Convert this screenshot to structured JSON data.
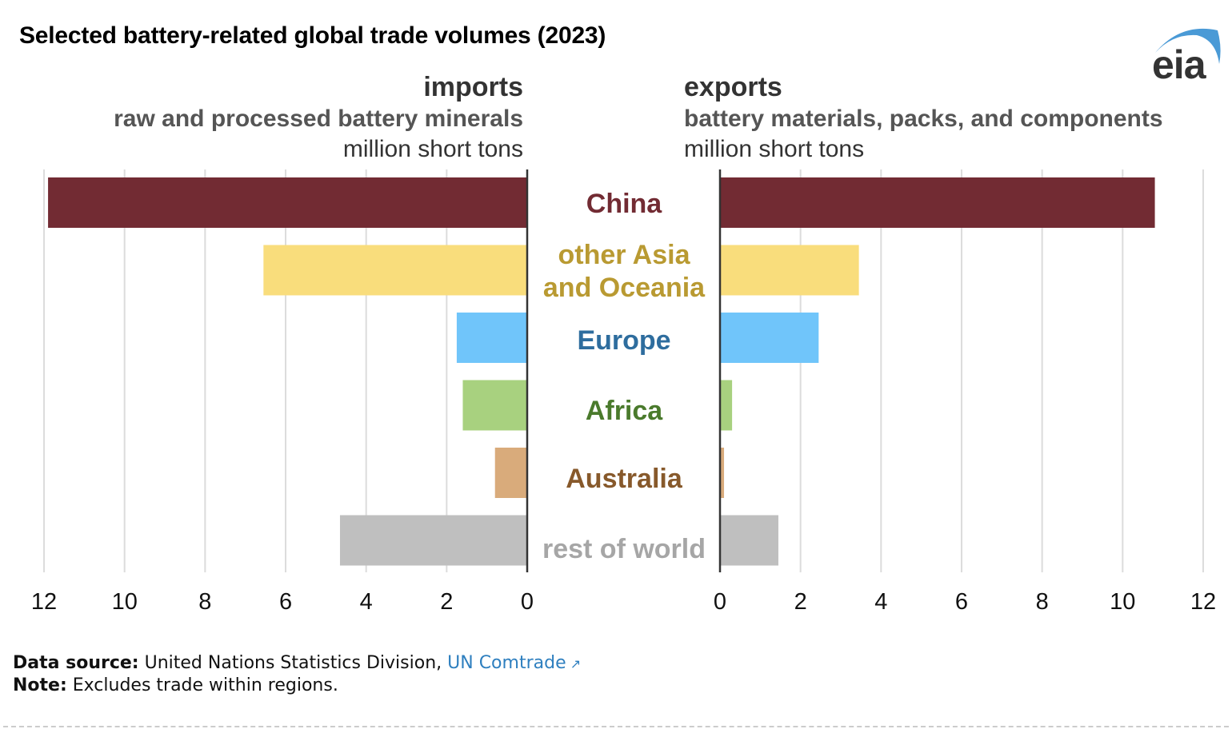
{
  "title": "Selected battery-related global trade volumes (2023)",
  "logo": {
    "text": "eia",
    "icon": "eia-logo-icon",
    "arc_color": "#4a9ad6"
  },
  "imports": {
    "heading": "imports",
    "subheading": "raw and processed battery minerals",
    "unit": "million short tons"
  },
  "exports": {
    "heading": "exports",
    "subheading": "battery materials, packs, and components",
    "unit": "million short tons"
  },
  "chart_data": {
    "type": "bar",
    "orientation": "horizontal-butterfly",
    "title": "Selected battery-related global trade volumes (2023)",
    "categories": [
      "China",
      "other Asia and Oceania",
      "Europe",
      "Africa",
      "Australia",
      "rest of world"
    ],
    "category_label_lines": [
      [
        "China"
      ],
      [
        "other Asia",
        "and Oceania"
      ],
      [
        "Europe"
      ],
      [
        "Africa"
      ],
      [
        "Australia"
      ],
      [
        "rest of world"
      ]
    ],
    "colors": [
      "#722b33",
      "#f9dd7c",
      "#70c5fa",
      "#a8d17f",
      "#d9ab7b",
      "#bfbfbf"
    ],
    "label_colors": [
      "#722b33",
      "#b99a32",
      "#2e6d9e",
      "#4a7a2c",
      "#87592b",
      "#a6a6a6"
    ],
    "series": [
      {
        "name": "imports",
        "values": [
          11.9,
          6.55,
          1.75,
          1.6,
          0.8,
          4.65
        ]
      },
      {
        "name": "exports",
        "values": [
          10.8,
          3.45,
          2.45,
          0.3,
          0.1,
          1.45
        ]
      }
    ],
    "xlabel": "million short tons",
    "xlim": [
      0,
      12
    ],
    "xticks": [
      0,
      2,
      4,
      6,
      8,
      10,
      12
    ],
    "xtick_labels": [
      "0",
      "2",
      "4",
      "6",
      "8",
      "10",
      "12"
    ],
    "grid": true,
    "legend": "none"
  },
  "footer": {
    "source_label": "Data source:",
    "source_text": "United Nations Statistics Division,",
    "source_link": "UN Comtrade",
    "note_label": "Note:",
    "note_text": "Excludes trade within regions."
  }
}
